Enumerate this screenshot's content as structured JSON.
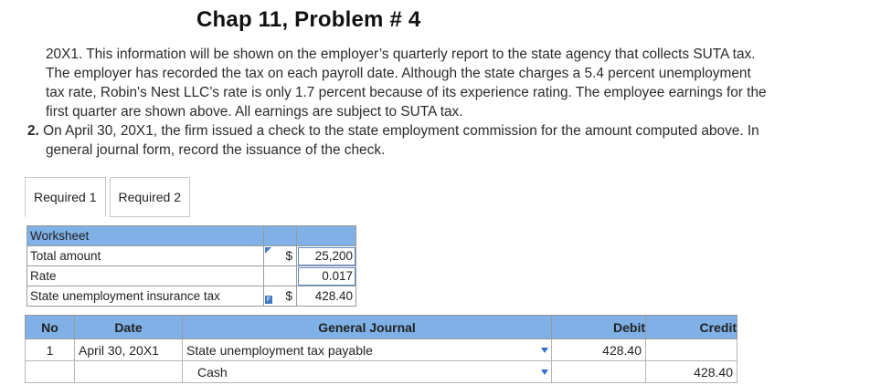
{
  "title": "Chap 11, Problem # 4",
  "intro": {
    "lines": [
      "20X1. This information will be shown on the employer’s quarterly report to the state agency that collects SUTA tax.",
      "The employer has recorded the tax on each payroll date. Although the state charges a 5.4 percent unemployment",
      "tax rate, Robin's Nest LLC’s rate is only 1.7 percent because of its experience rating. The employee earnings for the",
      "first quarter are shown above. All earnings are subject to SUTA tax."
    ]
  },
  "item2": {
    "number": "2.",
    "line1": "On April 30, 20X1, the firm issued a check to the state employment commission for the amount computed above. In",
    "line2": "general journal form, record the issuance of the check."
  },
  "tabs": [
    {
      "label": "Required 1",
      "active": true
    },
    {
      "label": "Required 2",
      "active": false
    }
  ],
  "worksheet": {
    "header": "Worksheet",
    "rows": [
      {
        "label": "Total amount",
        "currency": "$",
        "value": "25,200"
      },
      {
        "label": "Rate",
        "currency": "",
        "value": "0.017"
      },
      {
        "label": "State unemployment insurance tax",
        "currency": "$",
        "value": "428.40",
        "badge": "F"
      }
    ]
  },
  "journal": {
    "headers": {
      "no": "No",
      "date": "Date",
      "account": "General Journal",
      "debit": "Debit",
      "credit": "Credit"
    },
    "rows": [
      {
        "no": "1",
        "date": "April 30, 20X1",
        "account": "State unemployment tax payable",
        "debit": "428.40",
        "credit": ""
      },
      {
        "no": "",
        "date": "",
        "account": "Cash",
        "debit": "",
        "credit": "428.40"
      }
    ]
  },
  "colors": {
    "header_blue": "#7fb0e6",
    "dropdown_blue": "#2f6fcf"
  }
}
